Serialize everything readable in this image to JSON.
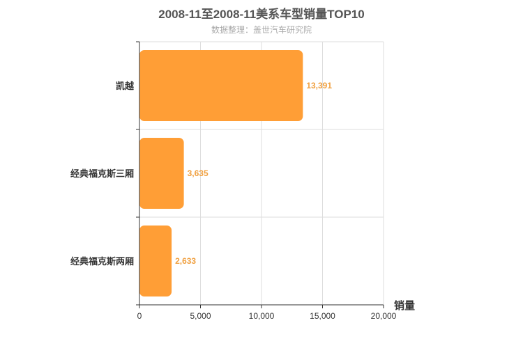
{
  "chart_data": {
    "type": "bar",
    "orientation": "horizontal",
    "title": "2008-11至2008-11美系车型销量TOP10",
    "subtitle": "数据整理：盖世汽车研究院",
    "categories": [
      "凯越",
      "经典福克斯三厢",
      "经典福克斯两厢"
    ],
    "values": [
      13391,
      3635,
      2633
    ],
    "value_labels": [
      "13,391",
      "3,635",
      "2,633"
    ],
    "xlabel": "销量",
    "xlim": [
      0,
      20000
    ],
    "xticks": [
      0,
      5000,
      10000,
      15000,
      20000
    ],
    "xtick_labels": [
      "0",
      "5,000",
      "10,000",
      "15,000",
      "20,000"
    ],
    "grid": true,
    "bar_color": "#ff9e36",
    "label_color": "#f0a040"
  }
}
